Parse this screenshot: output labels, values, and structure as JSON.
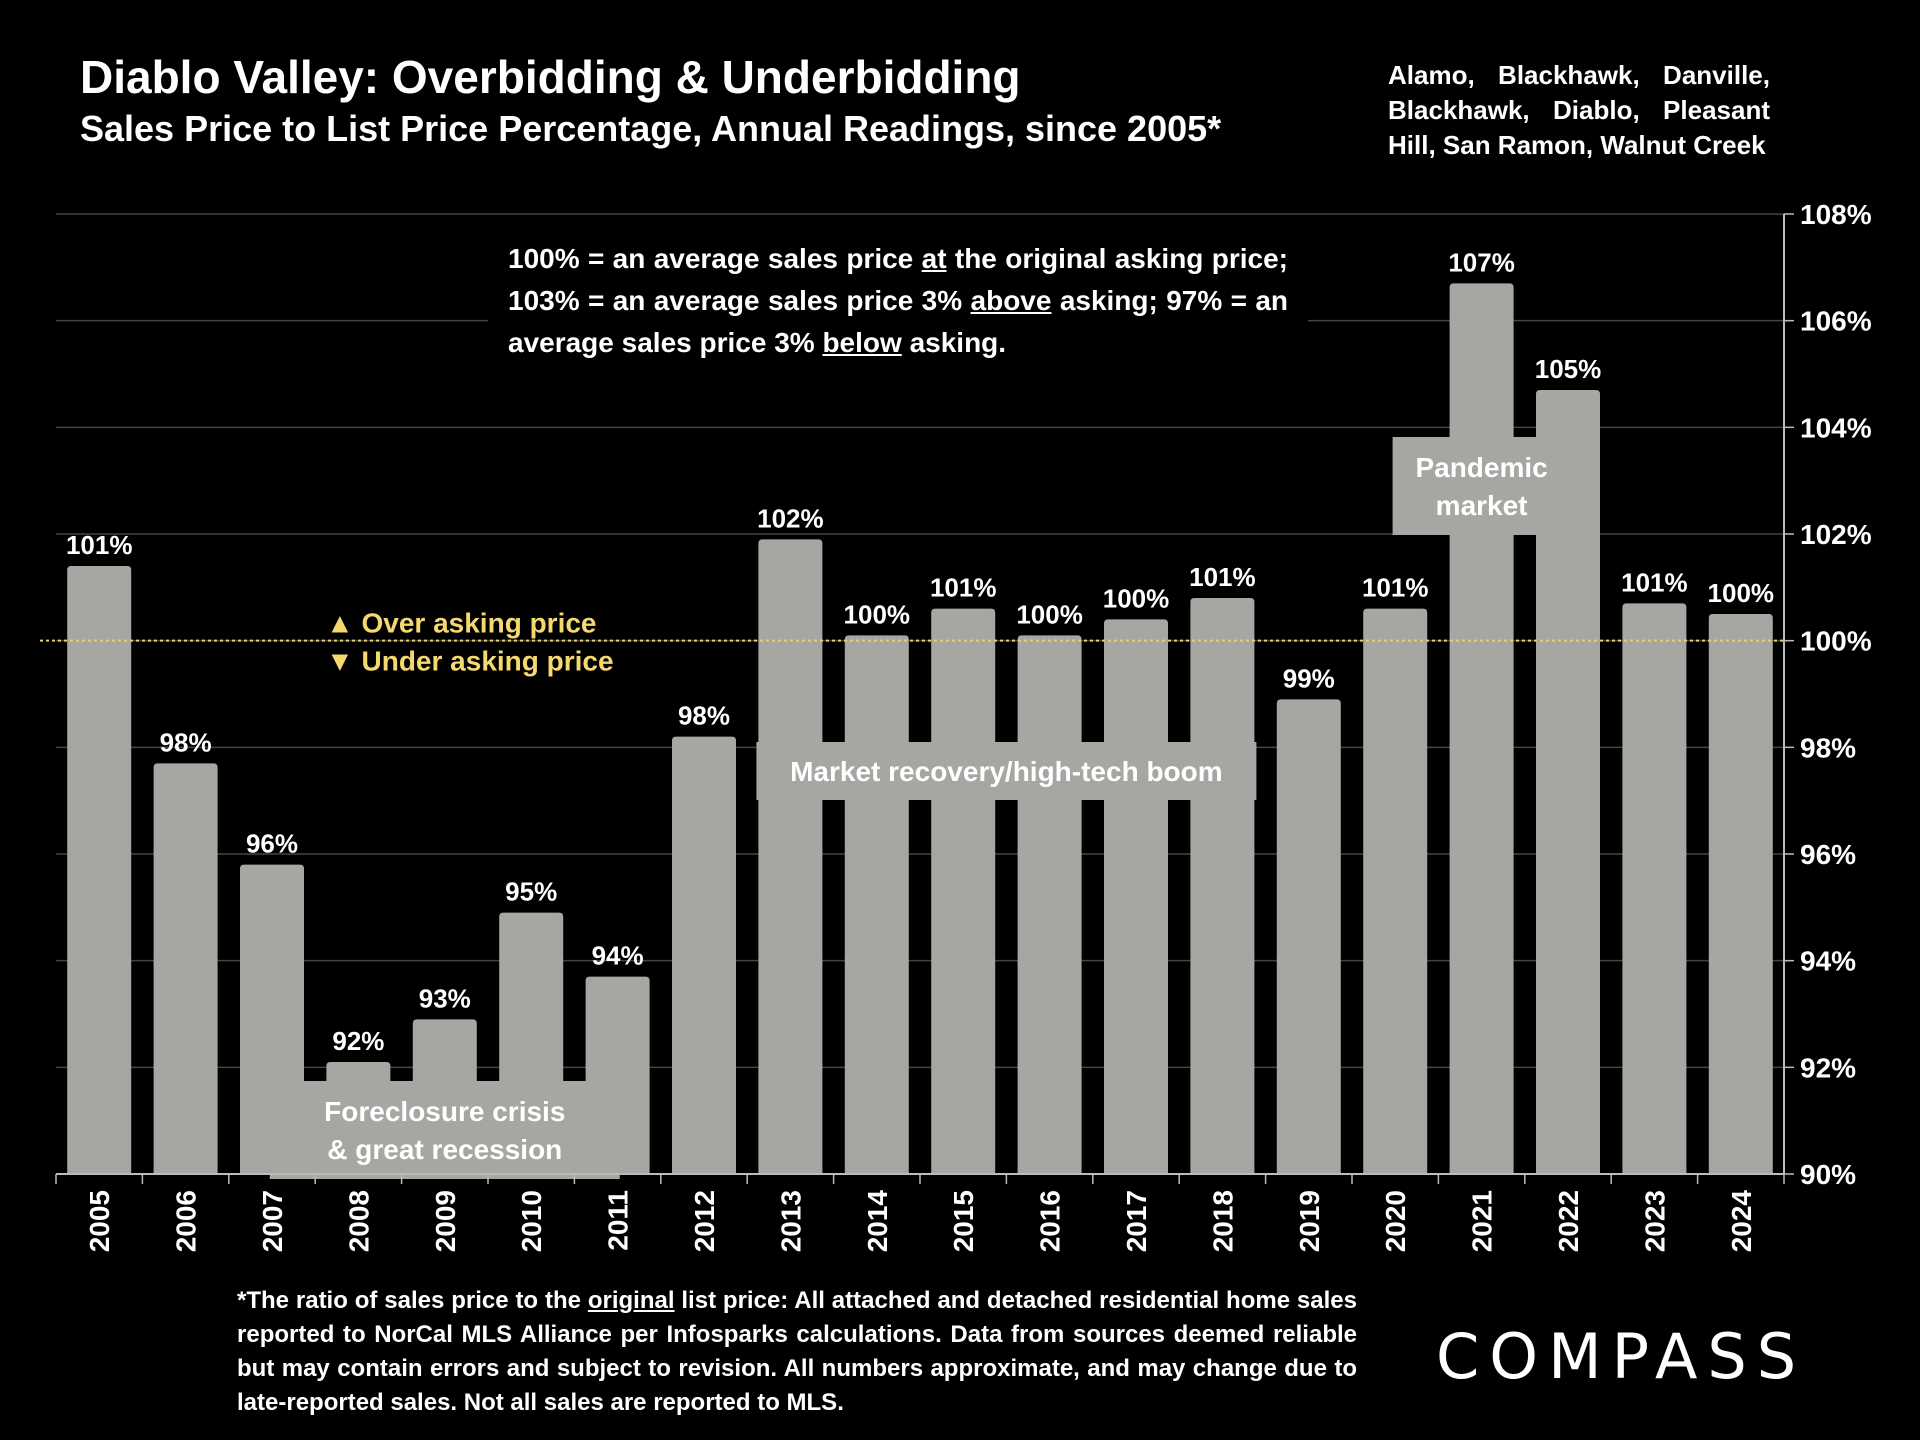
{
  "title": "Diablo Valley: Overbidding & Underbidding",
  "subtitle": "Sales Price to List Price Percentage, Annual Readings, since 2005*",
  "areas": "Alamo, Blackhawk, Danville, Blackhawk, Diablo, Pleasant Hill, San Ramon, Walnut Creek",
  "explanation": {
    "p1": "100% = an average sales price ",
    "u1": "at",
    "p2": " the original asking price; 103% = an average sales price 3% ",
    "u2": "above",
    "p3": " asking; 97% = an average sales price 3% ",
    "u3": "below",
    "p4": " asking."
  },
  "footnote": {
    "p1": "*The ratio of sales price to the ",
    "u1": "original",
    "p2": " list price: All attached and detached residential home sales reported to NorCal MLS Alliance per Infosparks calculations. Data from sources deemed reliable but may contain errors and subject to revision. All numbers approximate, and may change due to late-reported sales. Not all sales are reported to MLS."
  },
  "logo": "COMPASS",
  "colors": {
    "bar": "#a8a6a3",
    "background": "#000000",
    "reference_line": "#e8d070",
    "marker_text": "#f5d86e",
    "grid": "#444444"
  },
  "chart_data": {
    "type": "bar",
    "categories": [
      "2005",
      "2006",
      "2007",
      "2008",
      "2009",
      "2010",
      "2011",
      "2012",
      "2013",
      "2014",
      "2015",
      "2016",
      "2017",
      "2018",
      "2019",
      "2020",
      "2021",
      "2022",
      "2023",
      "2024"
    ],
    "values": [
      101.4,
      97.7,
      95.8,
      92.1,
      92.9,
      94.9,
      93.7,
      98.2,
      101.9,
      100.1,
      100.6,
      100.1,
      100.4,
      100.8,
      98.9,
      100.6,
      106.7,
      104.7,
      100.7,
      100.5
    ],
    "data_labels": [
      "101%",
      "98%",
      "96%",
      "92%",
      "93%",
      "95%",
      "94%",
      "98%",
      "102%",
      "100%",
      "101%",
      "100%",
      "100%",
      "101%",
      "99%",
      "101%",
      "107%",
      "105%",
      "101%",
      "100%"
    ],
    "ylim": [
      90,
      108
    ],
    "yticks": [
      90,
      92,
      94,
      96,
      98,
      100,
      102,
      104,
      106,
      108
    ],
    "ytick_labels": [
      "90%",
      "92%",
      "94%",
      "96%",
      "98%",
      "100%",
      "102%",
      "104%",
      "106%",
      "108%"
    ],
    "y_axis_side": "right",
    "grid": true,
    "reference_line": 100,
    "over_label": "▲ Over asking price",
    "under_label": "▼ Under asking price",
    "annotations": [
      {
        "text_lines": [
          "Foreclosure crisis",
          "& great recession"
        ],
        "span": [
          "2008",
          "2010"
        ]
      },
      {
        "text_lines": [
          "Market recovery/high-tech boom"
        ],
        "span": [
          "2013",
          "2018"
        ]
      },
      {
        "text_lines": [
          "Pandemic",
          "market"
        ],
        "span": [
          "2021",
          "2021"
        ]
      }
    ]
  }
}
